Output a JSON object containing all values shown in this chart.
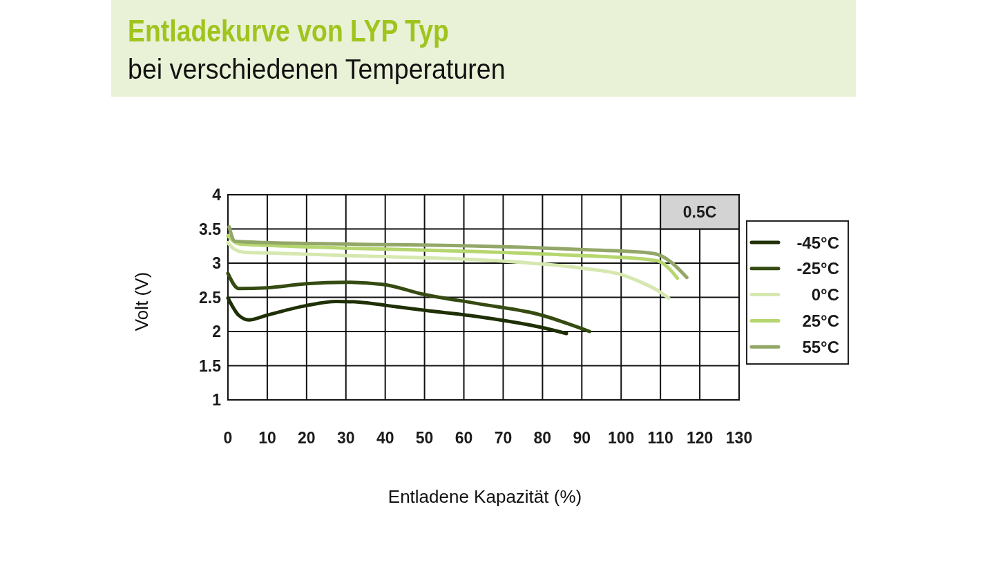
{
  "chart_data": {
    "type": "line",
    "title": "Entladekurve von LYP Typ",
    "subtitle": "bei verschiedenen Temperaturen",
    "xlabel": "Entladene Kapazität (%)",
    "ylabel": "Volt (V)",
    "annotations": [
      "0.5C"
    ],
    "xlim": [
      0,
      130
    ],
    "ylim": [
      1,
      4
    ],
    "xticks": [
      0,
      10,
      20,
      30,
      40,
      50,
      60,
      70,
      80,
      90,
      100,
      110,
      120,
      130
    ],
    "yticks": [
      1,
      1.5,
      2,
      2.5,
      3,
      3.5,
      4
    ],
    "grid": true,
    "legend": "right",
    "series": [
      {
        "name": "-45°C",
        "color": "#1f3006",
        "x": [
          0,
          2.7,
          5.3,
          10,
          20,
          27.5,
          33.4,
          40.4,
          50,
          63.3,
          79.7,
          86.1
        ],
        "values": [
          2.49,
          2.24,
          2.17,
          2.24,
          2.38,
          2.44,
          2.43,
          2.38,
          2.31,
          2.22,
          2.06,
          1.97
        ]
      },
      {
        "name": "-25°C",
        "color": "#354b12",
        "x": [
          0,
          2.7,
          10,
          20,
          30,
          39.3,
          50,
          63.3,
          79.7,
          86.7,
          92
        ],
        "values": [
          2.85,
          2.63,
          2.64,
          2.7,
          2.72,
          2.69,
          2.54,
          2.41,
          2.24,
          2.11,
          2.0
        ]
      },
      {
        "name": "0°C",
        "color": "#d6e8b0",
        "x": [
          0,
          1.5,
          4.1,
          10,
          30,
          63.3,
          89.6,
          100.2,
          104.3,
          109,
          112.1
        ],
        "values": [
          3.3,
          3.21,
          3.16,
          3.15,
          3.11,
          3.05,
          2.93,
          2.83,
          2.74,
          2.61,
          2.49
        ]
      },
      {
        "name": "25°C",
        "color": "#b6d66f",
        "x": [
          0,
          2.9,
          10,
          30,
          63.3,
          89.6,
          107.2,
          109.5,
          112.4,
          114.3
        ],
        "values": [
          3.4,
          3.28,
          3.26,
          3.22,
          3.17,
          3.11,
          3.05,
          3.03,
          2.91,
          2.78
        ]
      },
      {
        "name": "55°C",
        "color": "#93a768",
        "x": [
          0.3,
          1.8,
          10,
          30,
          63.3,
          89.6,
          107.2,
          110.1,
          113,
          116.7
        ],
        "values": [
          3.53,
          3.32,
          3.3,
          3.28,
          3.25,
          3.2,
          3.15,
          3.11,
          3.0,
          2.79
        ]
      }
    ]
  }
}
